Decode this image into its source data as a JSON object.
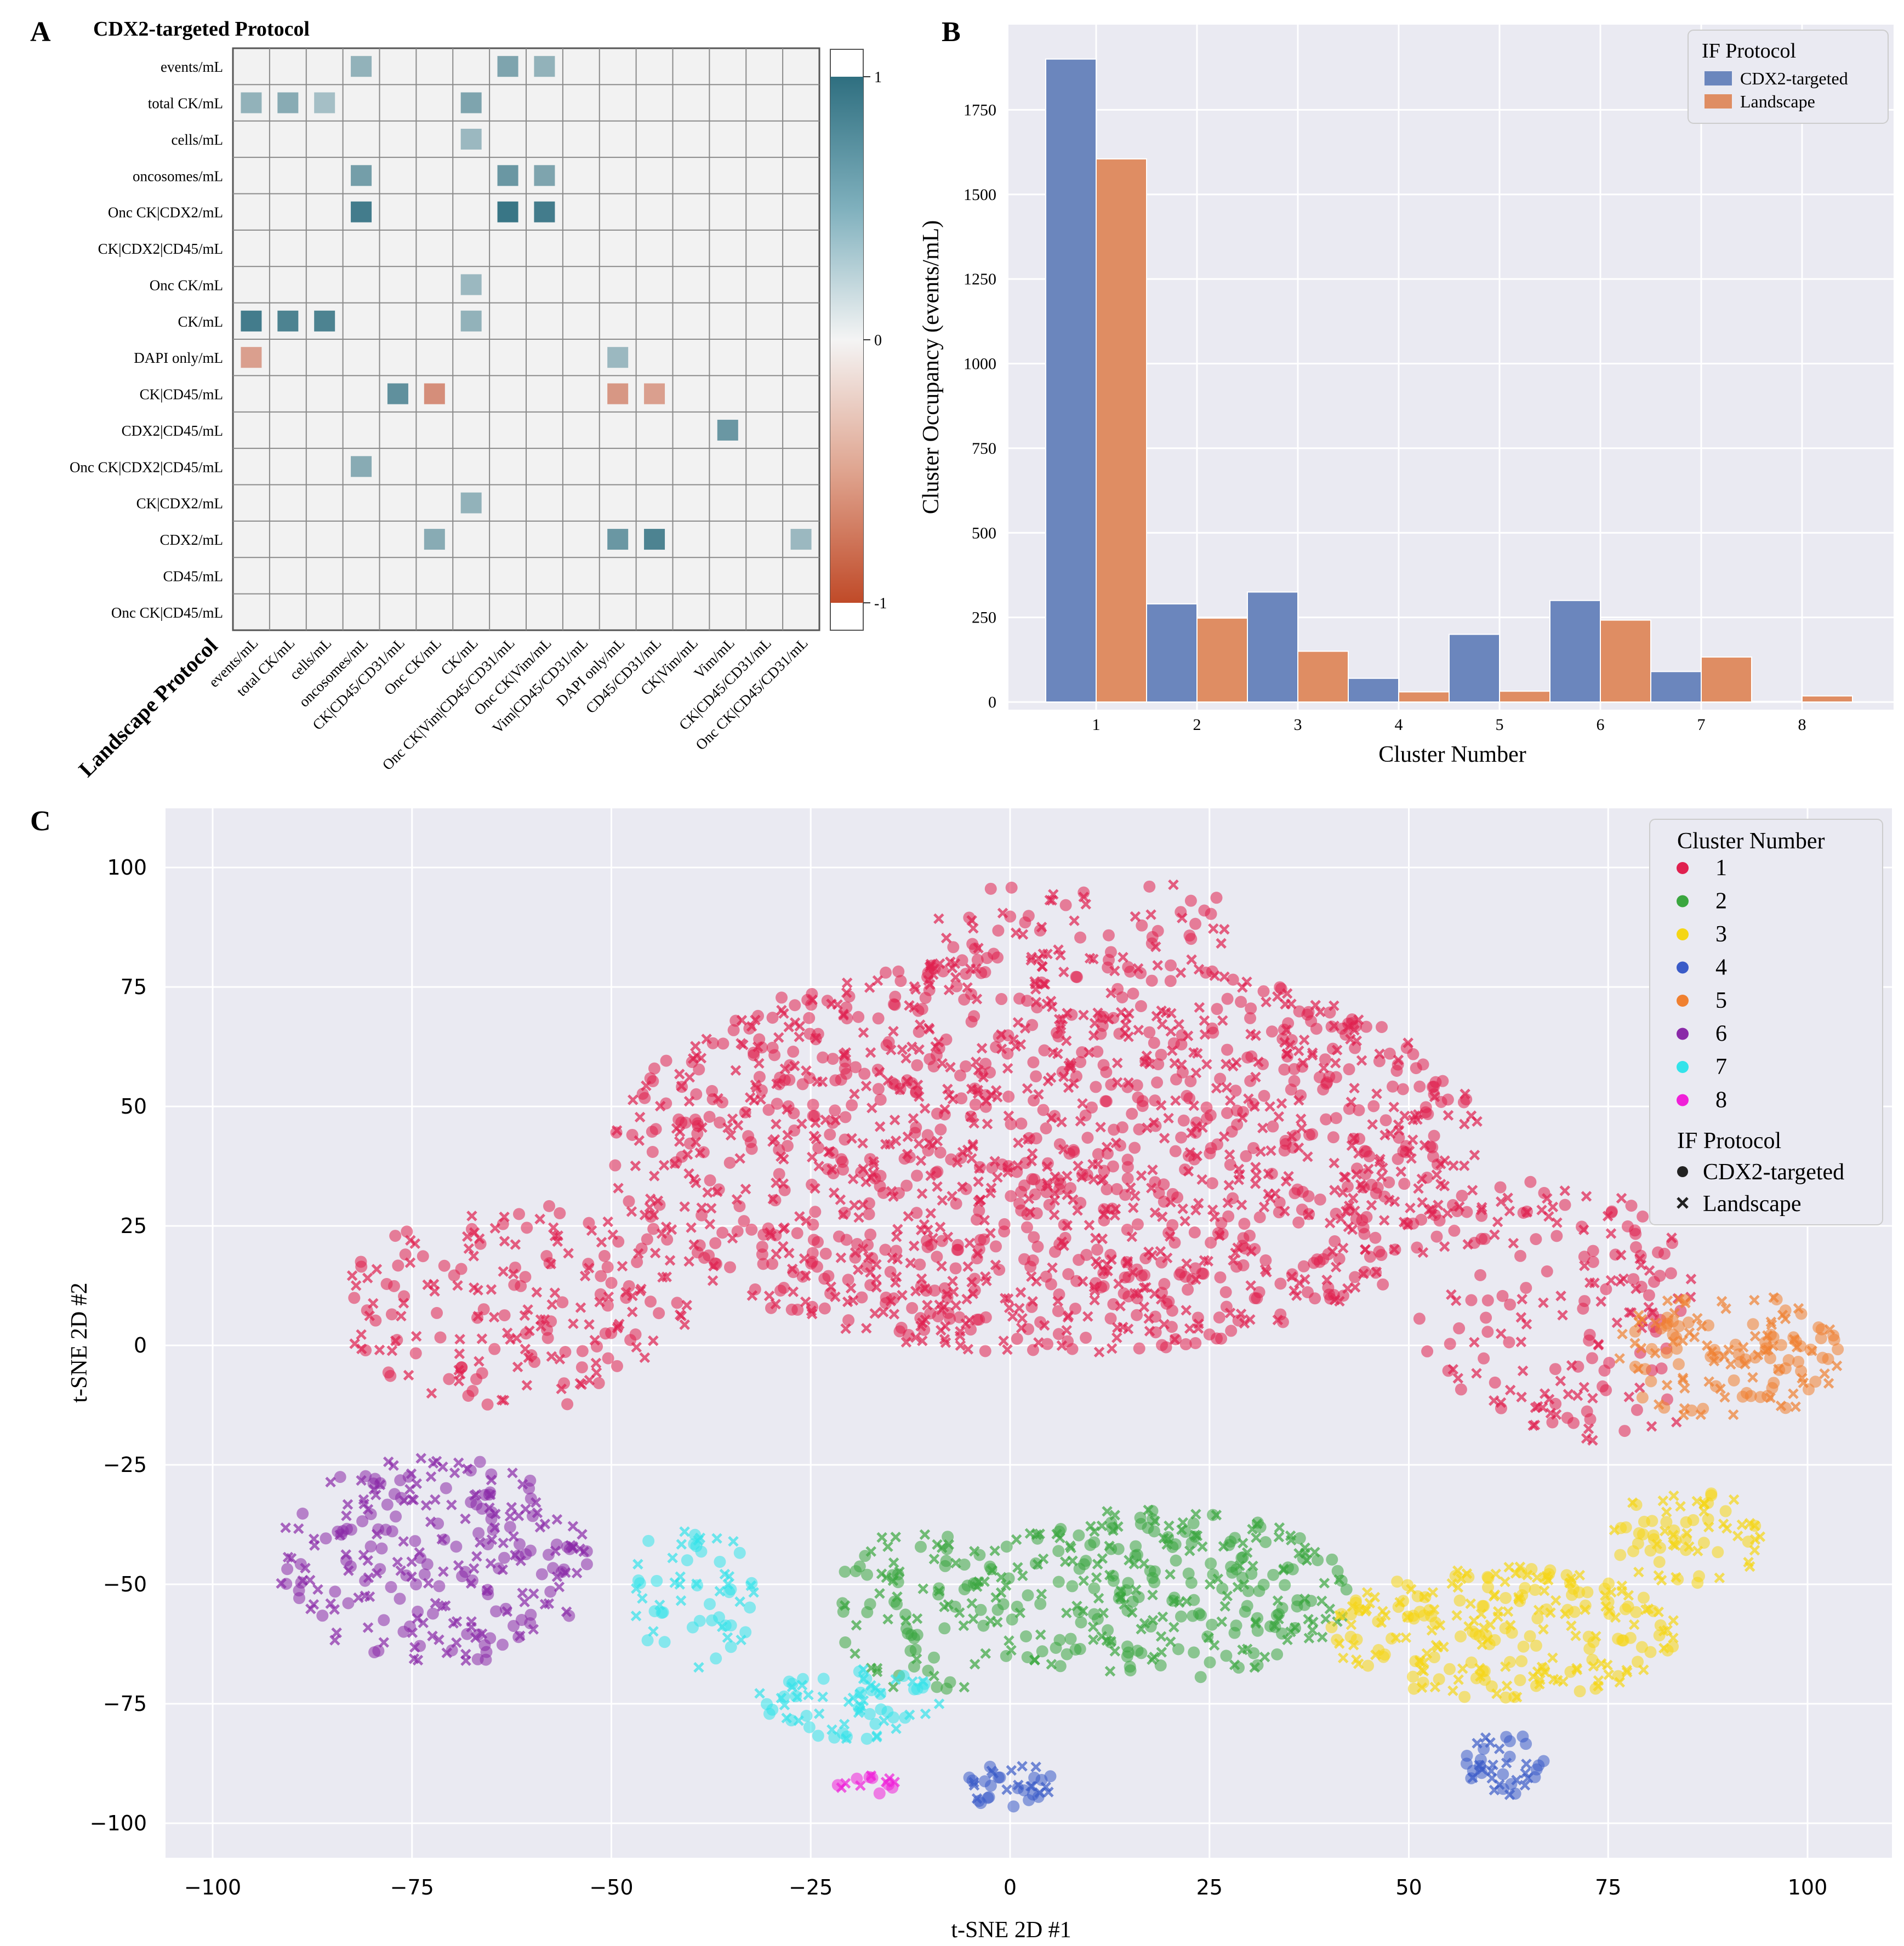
{
  "colors": {
    "positive": "#3a7b8c",
    "negative": "#c45a3a",
    "cdx2_bar": "#6b86bd",
    "landscape_bar": "#df8d63",
    "panel_bg": "#eaeaf2",
    "heatmap_bg": "#f2f2f2"
  },
  "chart_data": [
    {
      "type": "heatmap",
      "panel_label": "A",
      "title": "CDX2-targeted Protocol",
      "xlabel": "Landscape Protocol",
      "rows": [
        "events/mL",
        "total CK/mL",
        "cells/mL",
        "oncosomes/mL",
        "Onc CK|CDX2/mL",
        "CK|CDX2|CD45/mL",
        "Onc CK/mL",
        "CK/mL",
        "DAPI only/mL",
        "CK|CD45/mL",
        "CDX2|CD45/mL",
        "Onc CK|CDX2|CD45/mL",
        "CK|CDX2/mL",
        "CDX2/mL",
        "CD45/mL",
        "Onc CK|CD45/mL"
      ],
      "columns": [
        "events/mL",
        "total CK/mL",
        "cells/mL",
        "oncosomes/mL",
        "CK|CD45/CD31/mL",
        "Onc CK/mL",
        "CK/mL",
        "Onc CK|Vim|CD45/CD31/mL",
        "Onc CK|Vim/mL",
        "Vim|CD45/CD31/mL",
        "DAPI only/mL",
        "CD45/CD31/mL",
        "CK|Vim/mL",
        "Vim/mL",
        "CK|CD45/CD31/mL",
        "Onc CK|CD45/CD31/mL"
      ],
      "cells": [
        [
          0,
          3,
          0.5
        ],
        [
          0,
          7,
          0.6
        ],
        [
          0,
          8,
          0.5
        ],
        [
          1,
          0,
          0.5
        ],
        [
          1,
          1,
          0.55
        ],
        [
          1,
          2,
          0.4
        ],
        [
          1,
          6,
          0.6
        ],
        [
          2,
          6,
          0.45
        ],
        [
          3,
          3,
          0.65
        ],
        [
          3,
          7,
          0.7
        ],
        [
          3,
          8,
          0.6
        ],
        [
          4,
          3,
          0.9
        ],
        [
          4,
          7,
          0.95
        ],
        [
          4,
          8,
          0.9
        ],
        [
          6,
          6,
          0.45
        ],
        [
          7,
          0,
          0.9
        ],
        [
          7,
          1,
          0.85
        ],
        [
          7,
          2,
          0.85
        ],
        [
          7,
          6,
          0.5
        ],
        [
          8,
          0,
          -0.5
        ],
        [
          8,
          10,
          0.45
        ],
        [
          9,
          4,
          0.75
        ],
        [
          9,
          5,
          -0.6
        ],
        [
          9,
          10,
          -0.55
        ],
        [
          9,
          11,
          -0.5
        ],
        [
          10,
          13,
          0.7
        ],
        [
          11,
          3,
          0.55
        ],
        [
          12,
          6,
          0.5
        ],
        [
          13,
          5,
          0.55
        ],
        [
          13,
          10,
          0.7
        ],
        [
          13,
          11,
          0.85
        ],
        [
          13,
          15,
          0.45
        ]
      ],
      "colorbar": {
        "range": [
          -1,
          1
        ],
        "ticks": [
          "1",
          "0",
          "-1"
        ]
      }
    },
    {
      "type": "bar",
      "panel_label": "B",
      "xlabel": "Cluster Number",
      "ylabel": "Cluster Occupancy (events/mL)",
      "categories": [
        "1",
        "2",
        "3",
        "4",
        "5",
        "6",
        "7",
        "8"
      ],
      "series": [
        {
          "name": "CDX2-targeted",
          "values": [
            1900,
            290,
            325,
            70,
            200,
            300,
            90,
            2
          ]
        },
        {
          "name": "Landscape",
          "values": [
            1605,
            248,
            150,
            30,
            32,
            242,
            133,
            18
          ]
        }
      ],
      "ylim": [
        0,
        1950
      ],
      "yticks": [
        "0",
        "250",
        "500",
        "750",
        "1000",
        "1250",
        "1500",
        "1750"
      ],
      "legend": {
        "title": "IF Protocol",
        "position": "top-right"
      }
    },
    {
      "type": "scatter",
      "panel_label": "C",
      "xlabel": "t-SNE 2D #1",
      "ylabel": "t-SNE 2D #2",
      "xlim": [
        -106,
        106
      ],
      "ylim": [
        -111,
        112
      ],
      "xticks": [
        "−100",
        "−75",
        "−50",
        "−25",
        "0",
        "25",
        "50",
        "75",
        "100"
      ],
      "yticks": [
        "100",
        "75",
        "50",
        "25",
        "0",
        "−25",
        "−50",
        "−75",
        "−100"
      ],
      "legend": {
        "position": "top-right",
        "cluster_title": "Cluster Number",
        "clusters": [
          {
            "label": "1",
            "color": "#e0204f"
          },
          {
            "label": "2",
            "color": "#3aa63f"
          },
          {
            "label": "3",
            "color": "#f5d615"
          },
          {
            "label": "4",
            "color": "#3a5bc8"
          },
          {
            "label": "5",
            "color": "#f08030"
          },
          {
            "label": "6",
            "color": "#8a2aa8"
          },
          {
            "label": "7",
            "color": "#33e3ea"
          },
          {
            "label": "8",
            "color": "#f020d8"
          }
        ],
        "protocol_title": "IF Protocol",
        "protocols": [
          {
            "label": "CDX2-targeted",
            "marker": "circle"
          },
          {
            "label": "Landscape",
            "marker": "x"
          }
        ]
      },
      "regions": [
        {
          "cluster": 1,
          "cx": 5,
          "cy": 40,
          "rx": 55,
          "ry": 42,
          "n": 1500
        },
        {
          "cluster": 1,
          "cx": -62,
          "cy": 8,
          "rx": 22,
          "ry": 22,
          "n": 200
        },
        {
          "cluster": 1,
          "cx": 68,
          "cy": 10,
          "rx": 18,
          "ry": 25,
          "n": 150
        },
        {
          "cluster": 1,
          "cx": 10,
          "cy": 88,
          "rx": 20,
          "ry": 10,
          "n": 60
        },
        {
          "cluster": 1,
          "cx": 75,
          "cy": -15,
          "rx": 10,
          "ry": 6,
          "n": 25
        },
        {
          "cluster": 2,
          "cx": 18,
          "cy": -52,
          "rx": 25,
          "ry": 18,
          "n": 300
        },
        {
          "cluster": 2,
          "cx": -10,
          "cy": -55,
          "rx": 12,
          "ry": 18,
          "n": 90
        },
        {
          "cluster": 3,
          "cx": 62,
          "cy": -60,
          "rx": 22,
          "ry": 14,
          "n": 250
        },
        {
          "cluster": 3,
          "cx": 85,
          "cy": -40,
          "rx": 10,
          "ry": 10,
          "n": 70
        },
        {
          "cluster": 4,
          "cx": 0,
          "cy": -92,
          "rx": 6,
          "ry": 5,
          "n": 35
        },
        {
          "cluster": 4,
          "cx": 62,
          "cy": -88,
          "rx": 5,
          "ry": 7,
          "n": 40
        },
        {
          "cluster": 5,
          "cx": 90,
          "cy": -2,
          "rx": 14,
          "ry": 14,
          "n": 140
        },
        {
          "cluster": 6,
          "cx": -72,
          "cy": -45,
          "rx": 20,
          "ry": 22,
          "n": 260
        },
        {
          "cluster": 7,
          "cx": -40,
          "cy": -52,
          "rx": 8,
          "ry": 16,
          "n": 60
        },
        {
          "cluster": 7,
          "cx": -20,
          "cy": -75,
          "rx": 12,
          "ry": 8,
          "n": 70
        },
        {
          "cluster": 8,
          "cx": -18,
          "cy": -92,
          "rx": 4,
          "ry": 2,
          "n": 14
        }
      ]
    }
  ]
}
